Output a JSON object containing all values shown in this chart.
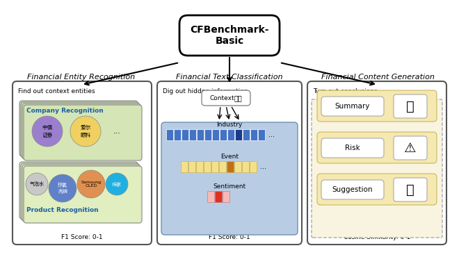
{
  "title": "CFBenchmark-\nBasic",
  "section1_title": "Financial Entity Recognition",
  "section2_title": "Financial Text Classification",
  "section3_title": "Financial Content Generation",
  "section1_subtitle": "Find out context entities",
  "section2_subtitle": "Dig out hidden information",
  "section3_subtitle": "Turn out conclusions",
  "section1_score": "F1 Score: 0-1",
  "section2_score": "F1 Score: 0-1",
  "section3_score": "Cosine Similarity: 0-1",
  "company_label": "Company Recognition",
  "product_label": "Product Recognition",
  "company_circles": [
    {
      "text": "中信\n证券",
      "color": "#9b7fce"
    },
    {
      "text": "爱尔\n眼科",
      "color": "#f0d060"
    },
    {
      "text": "...",
      "color": "none"
    }
  ],
  "product_circles": [
    {
      "text": "气泡水",
      "color": "#d0d0d0"
    },
    {
      "text": "环氧\n丙烷",
      "color": "#7090d0"
    },
    {
      "text": "Samsung\nOLED",
      "color": "#e09050"
    },
    {
      "text": "纸家",
      "color": "#20b0e0"
    }
  ],
  "industry_label": "Industry",
  "event_label": "Event",
  "sentiment_label": "Sentiment",
  "context_label": "Context",
  "summary_label": "Summary",
  "risk_label": "Risk",
  "suggestion_label": "Suggestion",
  "bg_color": "#ffffff",
  "box_bg": "#f5f5f5",
  "green_bg": "#c8dba8",
  "light_green_bg": "#d8e8b8",
  "blue_box_bg": "#b8d0e8",
  "yellow_box_bg": "#f5e8b0",
  "outer_box_color": "#888888",
  "inner_box_color": "#aaaaaa"
}
